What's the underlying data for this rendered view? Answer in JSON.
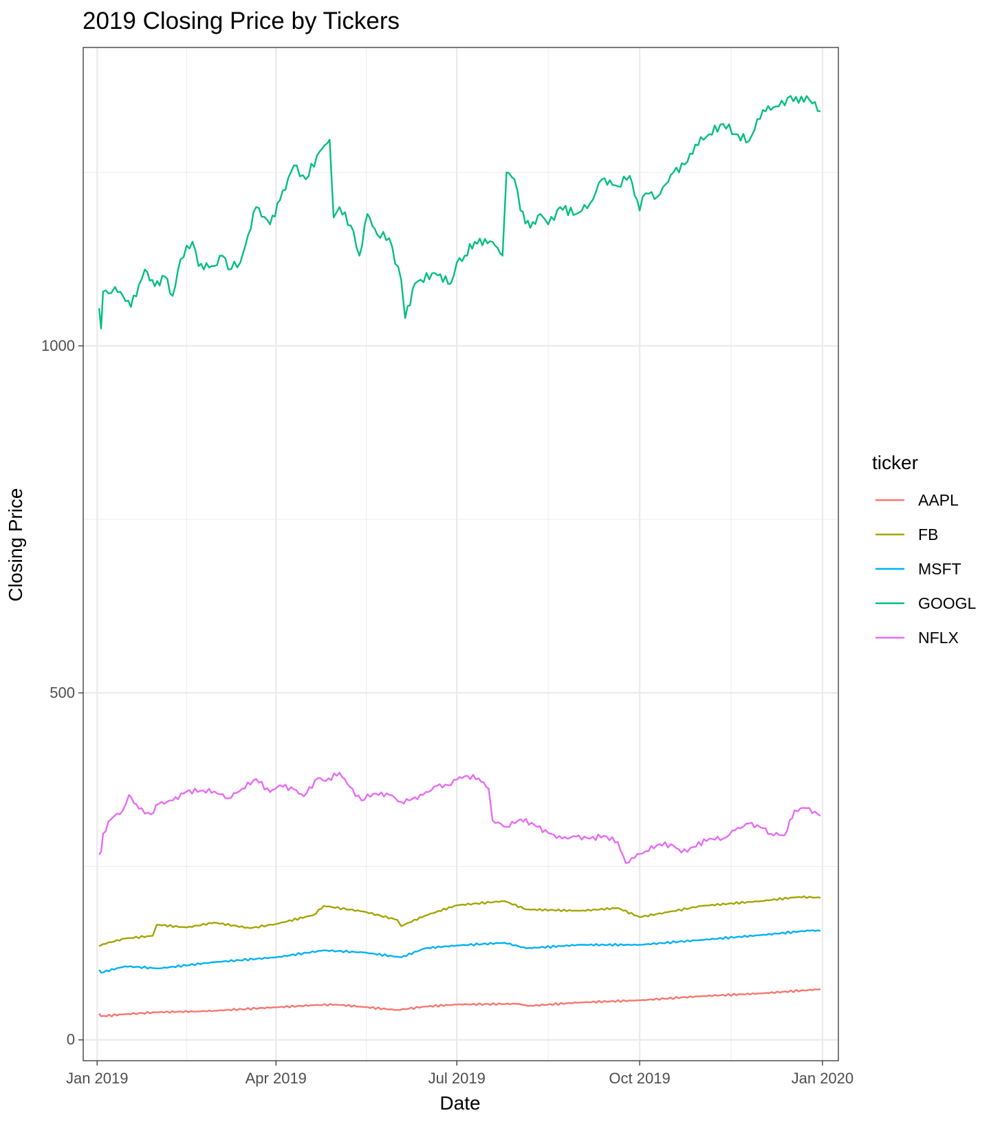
{
  "chart_data": {
    "type": "line",
    "title": "2019 Closing Price by Tickers",
    "xlabel": "Date",
    "ylabel": "Closing Price",
    "ylim": [
      -30,
      1430
    ],
    "xlim": [
      "2018-12-25",
      "2020-01-09"
    ],
    "y_ticks": [
      {
        "value": 0,
        "label": "0"
      },
      {
        "value": 500,
        "label": "500"
      },
      {
        "value": 1000,
        "label": "1000"
      }
    ],
    "x_ticks": [
      {
        "date": "2019-01-01",
        "label": "Jan 2019"
      },
      {
        "date": "2019-04-01",
        "label": "Apr 2019"
      },
      {
        "date": "2019-07-01",
        "label": "Jul 2019"
      },
      {
        "date": "2019-10-01",
        "label": "Oct 2019"
      },
      {
        "date": "2020-01-01",
        "label": "Jan 2020"
      }
    ],
    "grid": true,
    "legend": {
      "title": "ticker",
      "position": "right"
    },
    "series": [
      {
        "name": "AAPL",
        "color": "#F8766D",
        "points": [
          [
            "2019-01-02",
            38
          ],
          [
            "2019-01-03",
            34
          ],
          [
            "2019-01-15",
            37
          ],
          [
            "2019-02-01",
            40
          ],
          [
            "2019-02-20",
            41
          ],
          [
            "2019-03-01",
            42
          ],
          [
            "2019-04-01",
            47
          ],
          [
            "2019-04-20",
            50
          ],
          [
            "2019-05-01",
            51
          ],
          [
            "2019-05-13",
            48
          ],
          [
            "2019-06-01",
            43
          ],
          [
            "2019-06-15",
            48
          ],
          [
            "2019-07-01",
            51
          ],
          [
            "2019-08-01",
            52
          ],
          [
            "2019-08-06",
            49
          ],
          [
            "2019-09-01",
            54
          ],
          [
            "2019-10-01",
            57
          ],
          [
            "2019-11-01",
            63
          ],
          [
            "2019-12-01",
            67
          ],
          [
            "2019-12-31",
            73
          ]
        ]
      },
      {
        "name": "FB",
        "color": "#A3A500",
        "points": [
          [
            "2019-01-02",
            135
          ],
          [
            "2019-01-04",
            138
          ],
          [
            "2019-01-15",
            146
          ],
          [
            "2019-01-29",
            150
          ],
          [
            "2019-01-31",
            166
          ],
          [
            "2019-02-15",
            162
          ],
          [
            "2019-03-01",
            169
          ],
          [
            "2019-03-19",
            161
          ],
          [
            "2019-04-01",
            167
          ],
          [
            "2019-04-20",
            180
          ],
          [
            "2019-04-25",
            193
          ],
          [
            "2019-05-15",
            185
          ],
          [
            "2019-06-01",
            173
          ],
          [
            "2019-06-03",
            164
          ],
          [
            "2019-06-15",
            179
          ],
          [
            "2019-07-01",
            194
          ],
          [
            "2019-07-25",
            200
          ],
          [
            "2019-08-05",
            188
          ],
          [
            "2019-09-01",
            186
          ],
          [
            "2019-09-20",
            190
          ],
          [
            "2019-10-01",
            177
          ],
          [
            "2019-10-15",
            184
          ],
          [
            "2019-11-01",
            193
          ],
          [
            "2019-12-01",
            200
          ],
          [
            "2019-12-20",
            206
          ],
          [
            "2019-12-31",
            205
          ]
        ]
      },
      {
        "name": "MSFT",
        "color": "#00B0F6",
        "points": [
          [
            "2019-01-02",
            101
          ],
          [
            "2019-01-03",
            97
          ],
          [
            "2019-01-15",
            106
          ],
          [
            "2019-02-01",
            103
          ],
          [
            "2019-03-01",
            112
          ],
          [
            "2019-04-01",
            119
          ],
          [
            "2019-04-25",
            129
          ],
          [
            "2019-05-15",
            126
          ],
          [
            "2019-06-03",
            119
          ],
          [
            "2019-06-15",
            132
          ],
          [
            "2019-07-01",
            136
          ],
          [
            "2019-07-25",
            140
          ],
          [
            "2019-08-05",
            132
          ],
          [
            "2019-09-01",
            137
          ],
          [
            "2019-10-01",
            137
          ],
          [
            "2019-11-01",
            144
          ],
          [
            "2019-12-01",
            151
          ],
          [
            "2019-12-27",
            158
          ],
          [
            "2019-12-31",
            157
          ]
        ]
      },
      {
        "name": "GOOGL",
        "color": "#00BF7D",
        "points": [
          [
            "2019-01-02",
            1054
          ],
          [
            "2019-01-03",
            1025
          ],
          [
            "2019-01-04",
            1078
          ],
          [
            "2019-01-08",
            1076
          ],
          [
            "2019-01-10",
            1085
          ],
          [
            "2019-01-14",
            1072
          ],
          [
            "2019-01-18",
            1056
          ],
          [
            "2019-01-22",
            1088
          ],
          [
            "2019-01-25",
            1110
          ],
          [
            "2019-01-30",
            1086
          ],
          [
            "2019-02-04",
            1100
          ],
          [
            "2019-02-08",
            1072
          ],
          [
            "2019-02-12",
            1125
          ],
          [
            "2019-02-18",
            1150
          ],
          [
            "2019-02-21",
            1115
          ],
          [
            "2019-03-01",
            1115
          ],
          [
            "2019-03-05",
            1130
          ],
          [
            "2019-03-08",
            1110
          ],
          [
            "2019-03-14",
            1120
          ],
          [
            "2019-03-18",
            1160
          ],
          [
            "2019-03-22",
            1200
          ],
          [
            "2019-03-29",
            1175
          ],
          [
            "2019-04-03",
            1210
          ],
          [
            "2019-04-10",
            1260
          ],
          [
            "2019-04-16",
            1240
          ],
          [
            "2019-04-23",
            1280
          ],
          [
            "2019-04-28",
            1297
          ],
          [
            "2019-04-30",
            1185
          ],
          [
            "2019-05-03",
            1200
          ],
          [
            "2019-05-10",
            1165
          ],
          [
            "2019-05-13",
            1130
          ],
          [
            "2019-05-17",
            1190
          ],
          [
            "2019-05-22",
            1160
          ],
          [
            "2019-05-28",
            1155
          ],
          [
            "2019-06-03",
            1095
          ],
          [
            "2019-06-05",
            1040
          ],
          [
            "2019-06-10",
            1090
          ],
          [
            "2019-06-20",
            1105
          ],
          [
            "2019-06-28",
            1090
          ],
          [
            "2019-07-01",
            1120
          ],
          [
            "2019-07-05",
            1130
          ],
          [
            "2019-07-10",
            1150
          ],
          [
            "2019-07-19",
            1150
          ],
          [
            "2019-07-24",
            1130
          ],
          [
            "2019-07-26",
            1250
          ],
          [
            "2019-07-30",
            1240
          ],
          [
            "2019-08-02",
            1195
          ],
          [
            "2019-08-07",
            1170
          ],
          [
            "2019-08-12",
            1190
          ],
          [
            "2019-08-16",
            1175
          ],
          [
            "2019-08-22",
            1200
          ],
          [
            "2019-08-30",
            1190
          ],
          [
            "2019-09-06",
            1205
          ],
          [
            "2019-09-12",
            1240
          ],
          [
            "2019-09-20",
            1230
          ],
          [
            "2019-09-26",
            1245
          ],
          [
            "2019-10-01",
            1195
          ],
          [
            "2019-10-04",
            1220
          ],
          [
            "2019-10-10",
            1215
          ],
          [
            "2019-10-18",
            1250
          ],
          [
            "2019-10-25",
            1265
          ],
          [
            "2019-10-29",
            1290
          ],
          [
            "2019-11-05",
            1305
          ],
          [
            "2019-11-12",
            1320
          ],
          [
            "2019-11-18",
            1305
          ],
          [
            "2019-11-25",
            1295
          ],
          [
            "2019-12-02",
            1340
          ],
          [
            "2019-12-10",
            1345
          ],
          [
            "2019-12-16",
            1360
          ],
          [
            "2019-12-20",
            1350
          ],
          [
            "2019-12-24",
            1360
          ],
          [
            "2019-12-31",
            1338
          ]
        ]
      },
      {
        "name": "NFLX",
        "color": "#E76BF3",
        "points": [
          [
            "2019-01-02",
            267
          ],
          [
            "2019-01-03",
            271
          ],
          [
            "2019-01-04",
            297
          ],
          [
            "2019-01-08",
            318
          ],
          [
            "2019-01-14",
            331
          ],
          [
            "2019-01-17",
            353
          ],
          [
            "2019-01-22",
            333
          ],
          [
            "2019-01-28",
            325
          ],
          [
            "2019-02-01",
            340
          ],
          [
            "2019-02-08",
            345
          ],
          [
            "2019-02-15",
            358
          ],
          [
            "2019-02-22",
            359
          ],
          [
            "2019-03-01",
            358
          ],
          [
            "2019-03-08",
            348
          ],
          [
            "2019-03-15",
            362
          ],
          [
            "2019-03-22",
            376
          ],
          [
            "2019-03-29",
            357
          ],
          [
            "2019-04-03",
            367
          ],
          [
            "2019-04-10",
            361
          ],
          [
            "2019-04-15",
            351
          ],
          [
            "2019-04-22",
            377
          ],
          [
            "2019-04-26",
            373
          ],
          [
            "2019-05-03",
            385
          ],
          [
            "2019-05-08",
            365
          ],
          [
            "2019-05-14",
            345
          ],
          [
            "2019-05-20",
            355
          ],
          [
            "2019-05-28",
            353
          ],
          [
            "2019-06-03",
            343
          ],
          [
            "2019-06-07",
            345
          ],
          [
            "2019-06-14",
            353
          ],
          [
            "2019-06-21",
            366
          ],
          [
            "2019-06-28",
            367
          ],
          [
            "2019-07-01",
            375
          ],
          [
            "2019-07-05",
            380
          ],
          [
            "2019-07-12",
            377
          ],
          [
            "2019-07-17",
            362
          ],
          [
            "2019-07-19",
            316
          ],
          [
            "2019-07-26",
            307
          ],
          [
            "2019-08-02",
            318
          ],
          [
            "2019-08-09",
            310
          ],
          [
            "2019-08-16",
            298
          ],
          [
            "2019-08-23",
            290
          ],
          [
            "2019-08-30",
            293
          ],
          [
            "2019-09-06",
            290
          ],
          [
            "2019-09-13",
            294
          ],
          [
            "2019-09-20",
            285
          ],
          [
            "2019-09-24",
            255
          ],
          [
            "2019-09-27",
            262
          ],
          [
            "2019-10-04",
            272
          ],
          [
            "2019-10-11",
            282
          ],
          [
            "2019-10-18",
            280
          ],
          [
            "2019-10-22",
            270
          ],
          [
            "2019-10-28",
            278
          ],
          [
            "2019-11-05",
            290
          ],
          [
            "2019-11-12",
            290
          ],
          [
            "2019-11-18",
            302
          ],
          [
            "2019-11-25",
            312
          ],
          [
            "2019-12-02",
            305
          ],
          [
            "2019-12-06",
            297
          ],
          [
            "2019-12-13",
            295
          ],
          [
            "2019-12-18",
            331
          ],
          [
            "2019-12-24",
            334
          ],
          [
            "2019-12-31",
            323
          ]
        ]
      }
    ]
  }
}
